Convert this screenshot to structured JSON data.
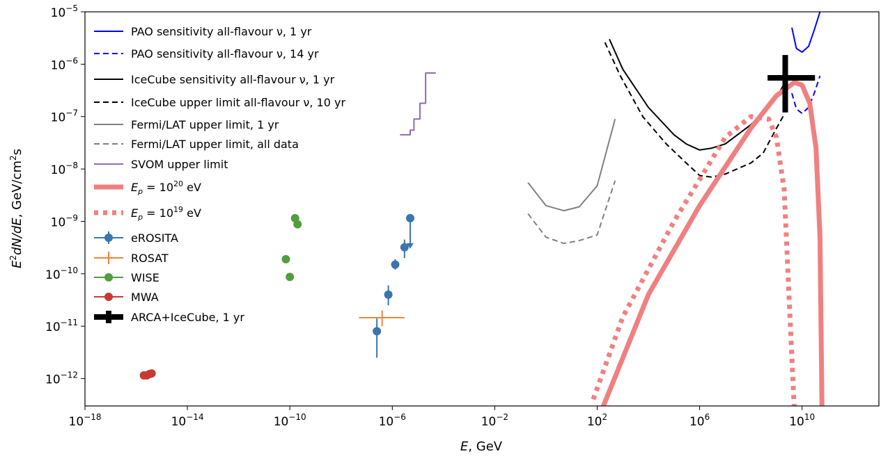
{
  "chart_data": {
    "type": "line",
    "x_scale": "log",
    "y_scale": "log",
    "xlim": [
      1e-18,
      10000000000000.0
    ],
    "ylim": [
      3e-13,
      1e-05
    ],
    "xlabel": {
      "var": "E",
      "unit": ", GeV"
    },
    "ylabel": {
      "prefix": "E",
      "sup": "2",
      "main": "dN/dE",
      "unit": ", GeV/cm",
      "unit_sup": "2",
      "unit_end": "s"
    },
    "x_ticks": [
      {
        "value": 1e-18,
        "base": "10",
        "exp": "−18"
      },
      {
        "value": 1e-14,
        "base": "10",
        "exp": "−14"
      },
      {
        "value": 1e-10,
        "base": "10",
        "exp": "−10"
      },
      {
        "value": 1e-06,
        "base": "10",
        "exp": "−6"
      },
      {
        "value": 0.01,
        "base": "10",
        "exp": "−2"
      },
      {
        "value": 100.0,
        "base": "10",
        "exp": "2"
      },
      {
        "value": 1000000.0,
        "base": "10",
        "exp": "6"
      },
      {
        "value": 10000000000.0,
        "base": "10",
        "exp": "10"
      }
    ],
    "y_ticks": [
      {
        "value": 1e-12,
        "base": "10",
        "exp": "−12"
      },
      {
        "value": 1e-11,
        "base": "10",
        "exp": "−11"
      },
      {
        "value": 1e-10,
        "base": "10",
        "exp": "−10"
      },
      {
        "value": 1e-09,
        "base": "10",
        "exp": "−9"
      },
      {
        "value": 1e-08,
        "base": "10",
        "exp": "−8"
      },
      {
        "value": 1e-07,
        "base": "10",
        "exp": "−7"
      },
      {
        "value": 1e-06,
        "base": "10",
        "exp": "−6"
      },
      {
        "value": 1e-05,
        "base": "10",
        "exp": "−5"
      }
    ],
    "lines": [
      {
        "id": "pao-1yr",
        "name": "PAO sensitivity all-flavour ν, 1 yr",
        "color": "#0000ff",
        "width": 2,
        "dash": "",
        "x": [
          4000000000.0,
          6000000000.0,
          10000000000.0,
          18000000000.0,
          30000000000.0,
          50000000000.0
        ],
        "y": [
          5e-06,
          2e-06,
          1.7e-06,
          2.2e-06,
          4.5e-06,
          1e-05
        ]
      },
      {
        "id": "pao-14yr",
        "name": "PAO sensitivity all-flavour ν, 14 yr",
        "color": "#0000ff",
        "width": 2,
        "dash": "8,5",
        "x": [
          4000000000.0,
          6000000000.0,
          10000000000.0,
          18000000000.0,
          30000000000.0,
          50000000000.0
        ],
        "y": [
          2.8e-07,
          1.4e-07,
          1.15e-07,
          1.5e-07,
          2.8e-07,
          6e-07
        ]
      },
      {
        "id": "icecube-1yr",
        "name": "IceCube sensitivity all-flavour ν, 1 yr",
        "color": "#000000",
        "width": 2,
        "dash": "",
        "x": [
          300.0,
          1000.0,
          10000.0,
          100000.0,
          300000.0,
          1000000.0,
          3000000.0,
          10000000.0,
          30000000.0,
          100000000.0,
          300000000.0,
          1000000000.0,
          3000000000.0
        ],
        "y": [
          3e-06,
          8e-07,
          1.5e-07,
          4.5e-08,
          3e-08,
          2.3e-08,
          2.5e-08,
          3e-08,
          4.5e-08,
          7e-08,
          1.2e-07,
          2.3e-07,
          6e-07
        ]
      },
      {
        "id": "icecube-10yr",
        "name": "IceCube upper limit all-flavour ν, 10 yr",
        "color": "#000000",
        "width": 2,
        "dash": "8,5",
        "x": [
          200.0,
          800.0,
          6000.0,
          50000.0,
          300000.0,
          1000000.0,
          3000000.0,
          10000000.0,
          100000000.0,
          300000000.0,
          1000000000.0,
          2000000000.0
        ],
        "y": [
          2.6e-06,
          6e-07,
          1e-07,
          3e-08,
          1.3e-08,
          7.5e-09,
          7e-09,
          8e-09,
          1.3e-08,
          2e-08,
          6e-08,
          1.1e-07
        ]
      },
      {
        "id": "fermi-1yr",
        "name": "Fermi/LAT upper limit, 1 yr",
        "color": "#808080",
        "width": 2,
        "dash": "",
        "x": [
          0.2,
          1,
          5,
          20,
          100,
          500
        ],
        "y": [
          5.5e-09,
          2e-09,
          1.6e-09,
          1.9e-09,
          4.8e-09,
          9e-08
        ]
      },
      {
        "id": "fermi-all",
        "name": "Fermi/LAT upper limit, all data",
        "color": "#808080",
        "width": 2,
        "dash": "8,5",
        "x": [
          0.2,
          1,
          5,
          20,
          100,
          500
        ],
        "y": [
          1.4e-09,
          5e-10,
          3.8e-10,
          4.3e-10,
          5.5e-10,
          6e-09
        ]
      },
      {
        "id": "svom",
        "name": "SVOM upper limit",
        "color": "#9467bd",
        "width": 2,
        "dash": "",
        "step": true,
        "x": [
          2e-06,
          5e-06,
          7e-06,
          1.2e-05,
          2e-05,
          3e-05,
          5e-05
        ],
        "y": [
          4.5e-08,
          5.5e-08,
          9e-08,
          1.8e-07,
          6.8e-07,
          6.8e-07,
          6.8e-07
        ]
      },
      {
        "id": "ep20",
        "name": "E_p = 10^20 eV",
        "color": "#f08080",
        "width": 7,
        "dash": "",
        "x": [
          150.0,
          10000.0,
          1000000.0,
          100000000.0,
          1000000000.0,
          5000000000.0,
          10000000000.0,
          20000000000.0,
          35000000000.0,
          50000000000.0,
          60000000000.0
        ],
        "y": [
          2.5e-13,
          4e-11,
          2e-09,
          6e-08,
          2.5e-07,
          4.5e-07,
          4e-07,
          1.8e-07,
          2.5e-08,
          5e-10,
          2.5e-13
        ]
      },
      {
        "id": "ep19",
        "name": "E_p = 10^19 eV",
        "color": "#f08080",
        "width": 7,
        "dash": "6,7",
        "x": [
          70.0,
          1000.0,
          100000.0,
          10000000.0,
          100000000.0,
          500000000.0,
          1000000000.0,
          2000000000.0,
          3500000000.0,
          5000000000.0,
          6000000000.0
        ],
        "y": [
          4e-13,
          1.5e-11,
          1e-09,
          4e-08,
          1e-07,
          9e-08,
          4e-08,
          4e-09,
          1e-11,
          2.5e-13,
          2.5e-13
        ]
      }
    ],
    "points": [
      {
        "id": "erosita",
        "name": "eROSITA",
        "color": "#3b75af",
        "marker": "o",
        "data": [
          {
            "x": 2.5e-07,
            "y": 8e-12,
            "ylo": 2.5e-12,
            "yhi": 1.4e-11
          },
          {
            "x": 7e-07,
            "y": 4e-11,
            "ylo": 2.5e-11,
            "yhi": 6e-11
          },
          {
            "x": 1.3e-06,
            "y": 1.5e-10,
            "ylo": 1.2e-10,
            "yhi": 1.9e-10
          },
          {
            "x": 3e-06,
            "y": 3.2e-10,
            "ylo": 2e-10,
            "yhi": 4.5e-10
          },
          {
            "x": 5e-06,
            "y": 1.15e-09,
            "ylo": 3.2e-10,
            "yhi": 1.15e-09,
            "upper_limit": true
          }
        ]
      },
      {
        "id": "rosat",
        "name": "ROSAT",
        "color": "#ef8636",
        "marker": "+",
        "data": [
          {
            "x": 4e-07,
            "y": 1.45e-11,
            "xlo": 5e-08,
            "xhi": 3e-06,
            "ylo": 1e-11,
            "yhi": 2e-11
          }
        ]
      },
      {
        "id": "wise",
        "name": "WISE",
        "color": "#519e3e",
        "marker": "o",
        "data": [
          {
            "x": 7e-11,
            "y": 1.9e-10
          },
          {
            "x": 1e-10,
            "y": 8.7e-11
          },
          {
            "x": 1.6e-10,
            "y": 1.15e-09
          },
          {
            "x": 2e-10,
            "y": 8.8e-10
          }
        ]
      },
      {
        "id": "mwa",
        "name": "MWA",
        "color": "#c53a32",
        "marker": "o",
        "data": [
          {
            "x": 2e-16,
            "y": 1.15e-12
          },
          {
            "x": 2.6e-16,
            "y": 1.15e-12
          },
          {
            "x": 3.3e-16,
            "y": 1.22e-12
          },
          {
            "x": 4e-16,
            "y": 1.25e-12
          }
        ]
      },
      {
        "id": "arca",
        "name": "ARCA+IceCube, 1 yr",
        "color": "#000000",
        "marker": "+",
        "data": [
          {
            "x": 2200000000.0,
            "y": 5.5e-07,
            "xlo": 450000000.0,
            "xhi": 32000000000.0,
            "ylo": 1.2e-07,
            "yhi": 1.5e-06
          }
        ]
      }
    ],
    "legend": {
      "placement": "upper-left",
      "entries": [
        {
          "label": "PAO sensitivity all-flavour ν, 1 yr",
          "ref": "pao-1yr"
        },
        {
          "label": "PAO sensitivity all-flavour ν, 14 yr",
          "ref": "pao-14yr"
        },
        {
          "label": "IceCube sensitivity all-flavour ν, 1 yr",
          "ref": "icecube-1yr"
        },
        {
          "label": "IceCube upper limit all-flavour ν, 10 yr",
          "ref": "icecube-10yr"
        },
        {
          "label": "Fermi/LAT upper limit, 1 yr",
          "ref": "fermi-1yr"
        },
        {
          "label": "Fermi/LAT upper limit, all data",
          "ref": "fermi-all"
        },
        {
          "label": "SVOM upper limit",
          "ref": "svom"
        },
        {
          "label_parts": [
            "E",
            "p",
            " = 10",
            "20",
            " eV"
          ],
          "ref": "ep20"
        },
        {
          "label_parts": [
            "E",
            "p",
            " = 10",
            "19",
            " eV"
          ],
          "ref": "ep19"
        },
        {
          "label": "eROSITA",
          "ref": "erosita"
        },
        {
          "label": "ROSAT",
          "ref": "rosat"
        },
        {
          "label": "WISE",
          "ref": "wise"
        },
        {
          "label": "MWA",
          "ref": "mwa"
        },
        {
          "label": "ARCA+IceCube, 1 yr",
          "ref": "arca"
        }
      ]
    },
    "grid": false
  }
}
